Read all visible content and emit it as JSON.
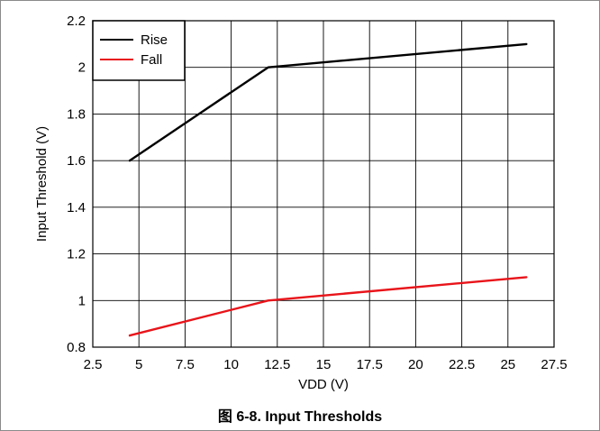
{
  "caption": "图 6-8. Input Thresholds",
  "colors": {
    "rise": "#000000",
    "fall": "#e8141a",
    "grid": "#000000",
    "background": "#ffffff"
  },
  "chart_data": {
    "type": "line",
    "title": "",
    "xlabel": "VDD (V)",
    "ylabel": "Input Threshold (V)",
    "xlim": [
      2.5,
      27.5
    ],
    "ylim": [
      0.8,
      2.2
    ],
    "xticks": [
      2.5,
      5,
      7.5,
      10,
      12.5,
      15,
      17.5,
      20,
      22.5,
      25,
      27.5
    ],
    "yticks": [
      0.8,
      1,
      1.2,
      1.4,
      1.6,
      1.8,
      2,
      2.2
    ],
    "xtick_labels": [
      "2.5",
      "5",
      "7.5",
      "10",
      "12.5",
      "15",
      "17.5",
      "20",
      "22.5",
      "25",
      "27.5"
    ],
    "ytick_labels": [
      "0.8",
      "1",
      "1.2",
      "1.4",
      "1.6",
      "1.8",
      "2",
      "2.2"
    ],
    "grid": true,
    "legend": "top-left",
    "series": [
      {
        "name": "Rise",
        "color": "#000000",
        "x": [
          4.5,
          12,
          26
        ],
        "y": [
          1.6,
          2.0,
          2.1
        ]
      },
      {
        "name": "Fall",
        "color": "#e8141a",
        "x": [
          4.5,
          12,
          26
        ],
        "y": [
          0.85,
          1.0,
          1.1
        ]
      }
    ]
  }
}
